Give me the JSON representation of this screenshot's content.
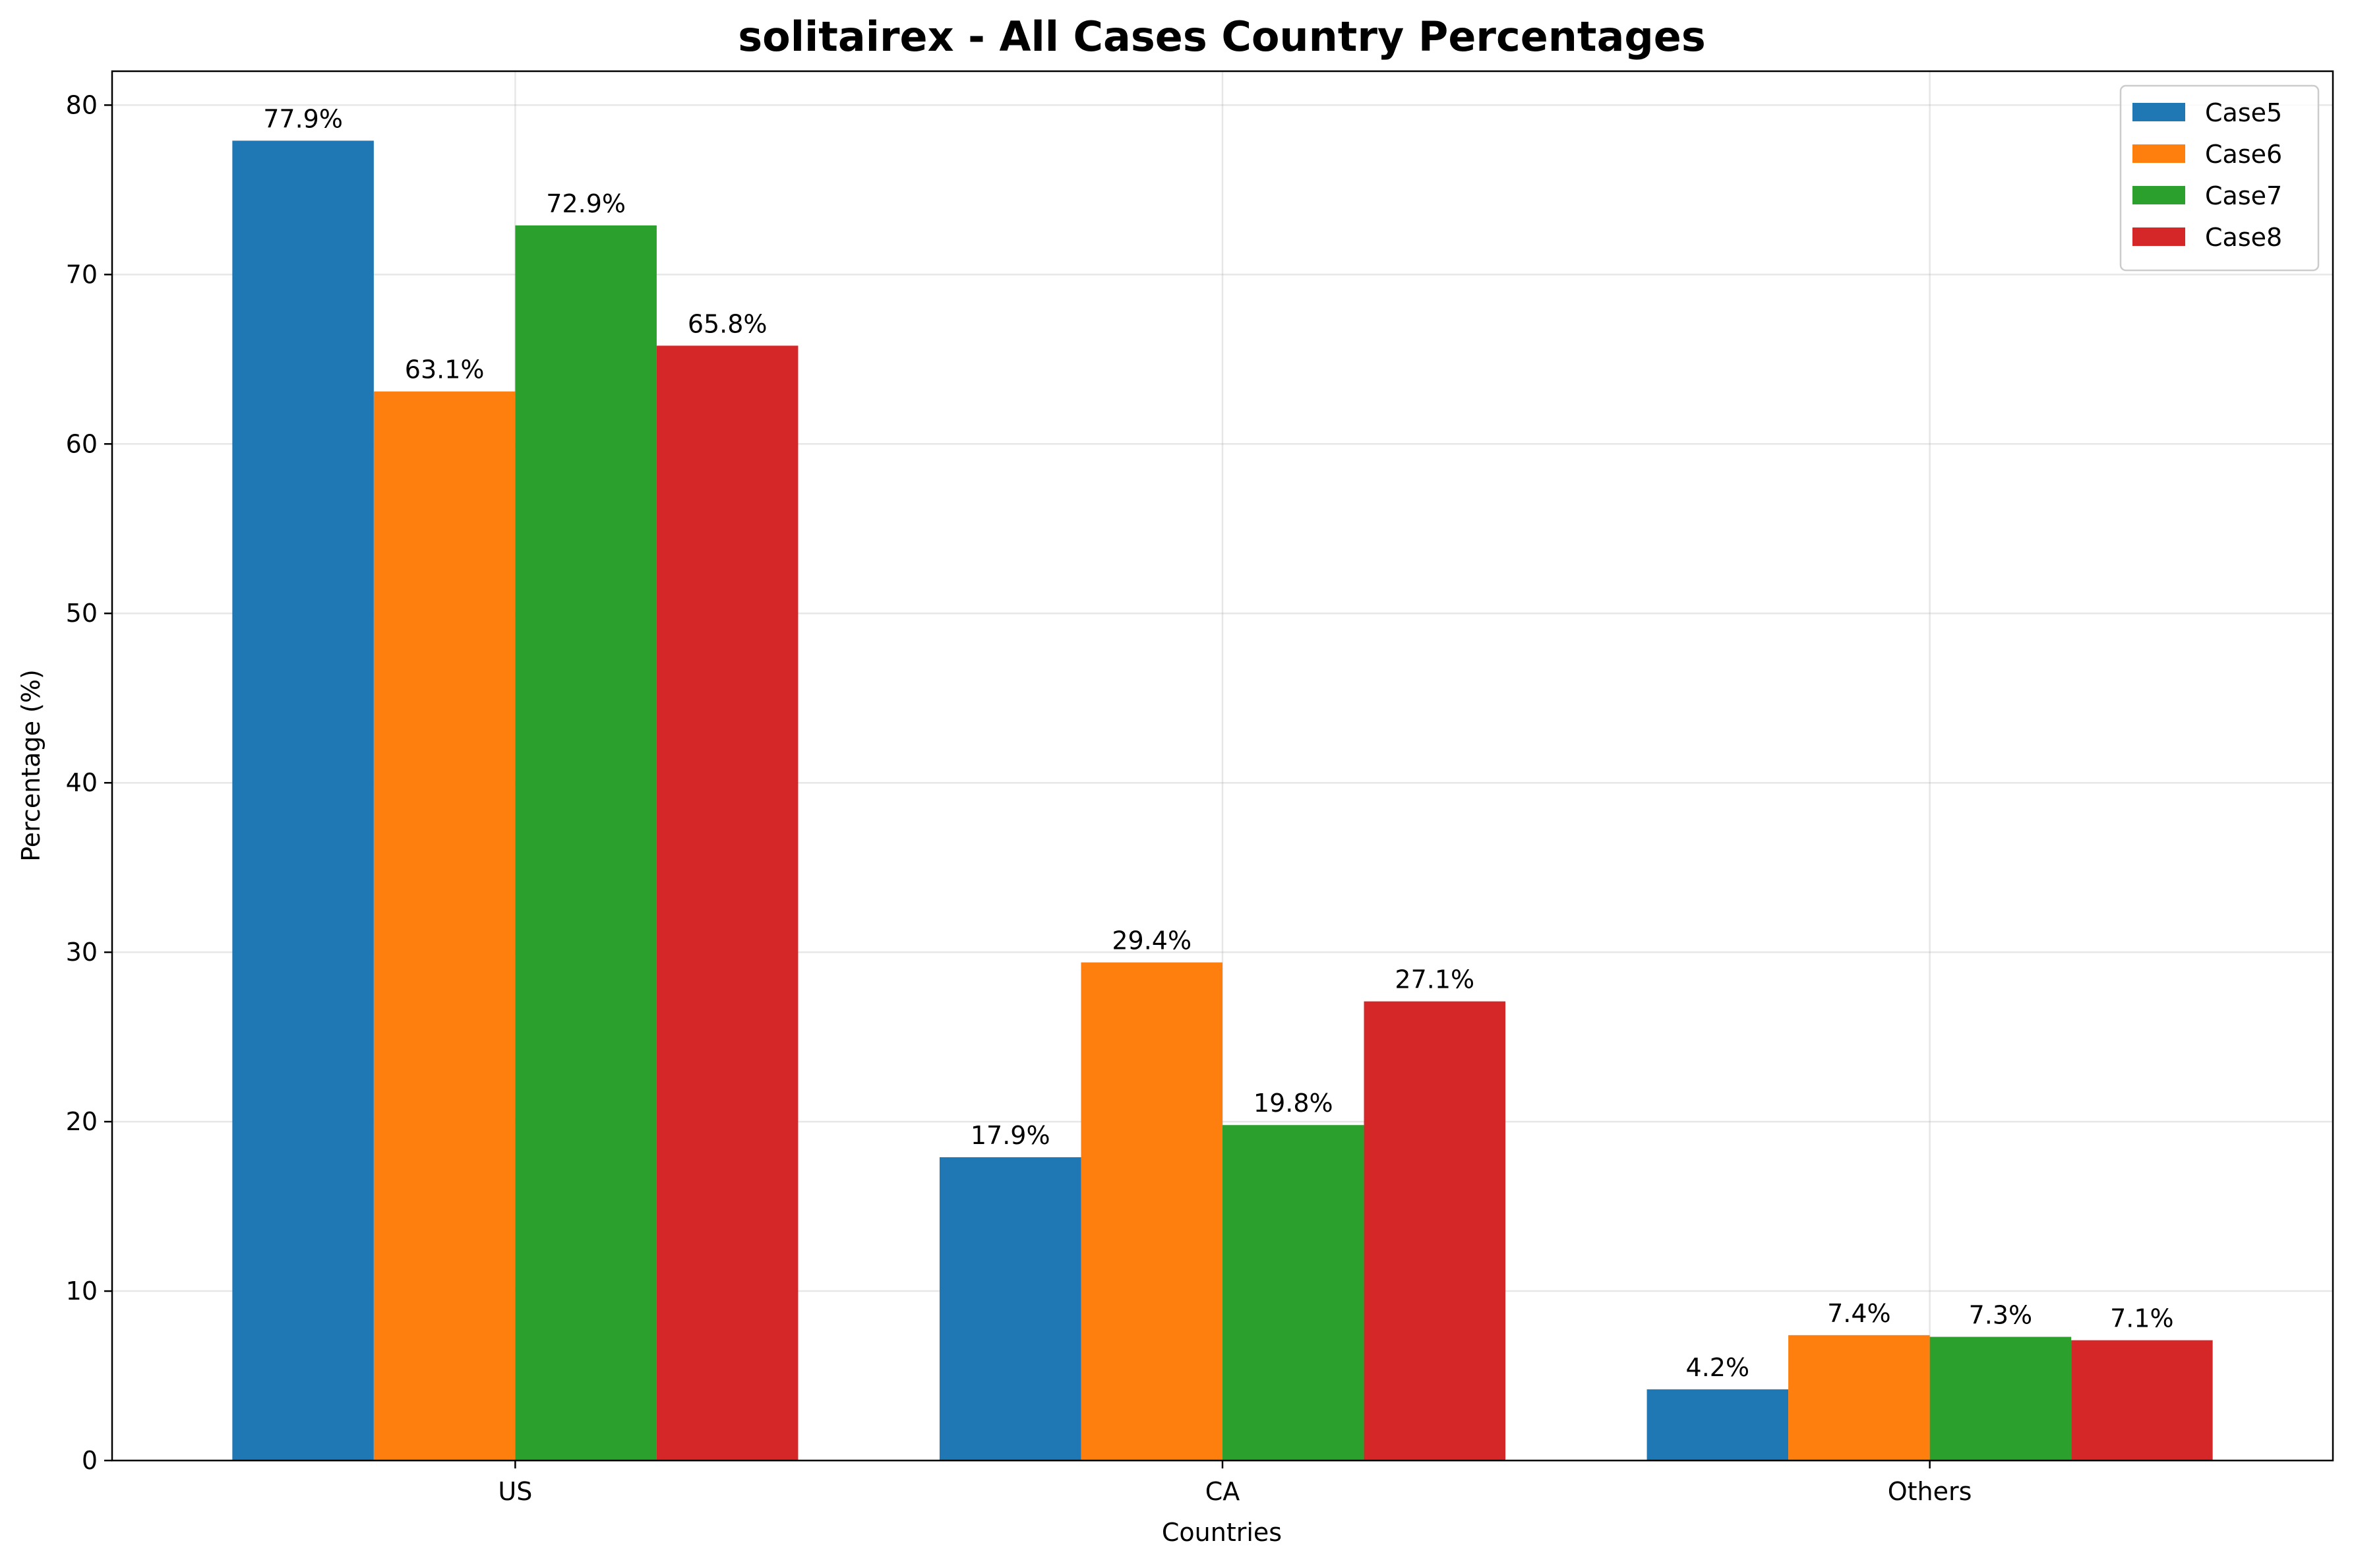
{
  "chart_data": {
    "type": "bar",
    "title": "solitairex - All Cases Country Percentages",
    "xlabel": "Countries",
    "ylabel": "Percentage (%)",
    "categories": [
      "US",
      "CA",
      "Others"
    ],
    "ylim": [
      0,
      82
    ],
    "yticks": [
      0,
      10,
      20,
      30,
      40,
      50,
      60,
      70,
      80
    ],
    "grid": true,
    "legend_position": "top-right",
    "label_suffix": "%",
    "series": [
      {
        "name": "Case5",
        "color": "#1f77b4",
        "values": [
          77.9,
          17.9,
          4.2
        ]
      },
      {
        "name": "Case6",
        "color": "#ff7f0e",
        "values": [
          63.1,
          29.4,
          7.4
        ]
      },
      {
        "name": "Case7",
        "color": "#2ca02c",
        "values": [
          72.9,
          19.8,
          7.3
        ]
      },
      {
        "name": "Case8",
        "color": "#d62728",
        "values": [
          65.8,
          27.1,
          7.1
        ]
      }
    ]
  }
}
